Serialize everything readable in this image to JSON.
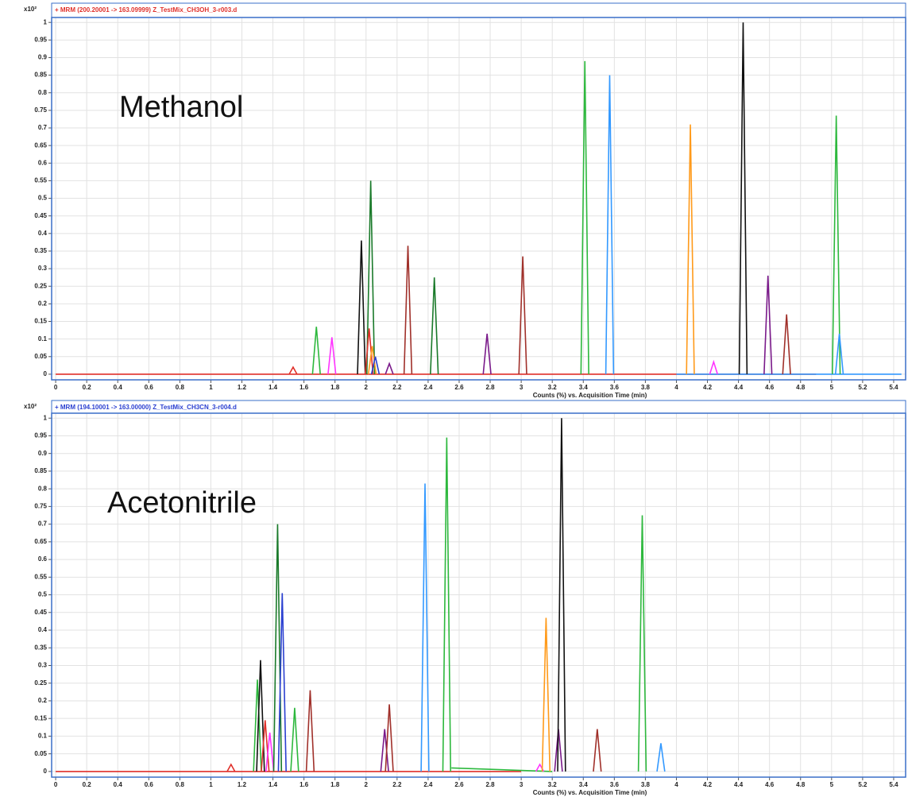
{
  "chart_data": [
    {
      "type": "line",
      "title": "+ MRM (200.20001 -> 163.09999) Z_TestMix_CH3OH_3-r003.d",
      "title_color": "#e0302a",
      "annotation": "Methanol",
      "y_scale_label": "x10²",
      "x_label": "Counts (%) vs. Acquisition Time (min)",
      "grid": true,
      "xlim": [
        -0.026,
        5.477
      ],
      "ylim": [
        -0.016,
        1.014
      ],
      "xticks": [
        0,
        0.2,
        0.4,
        0.6,
        0.8,
        1,
        1.2,
        1.4,
        1.6,
        1.8,
        2,
        2.2,
        2.4,
        2.6,
        2.8,
        3,
        3.2,
        3.4,
        3.6,
        3.8,
        4,
        4.2,
        4.4,
        4.6,
        4.8,
        5,
        5.2,
        5.4
      ],
      "yticks": [
        0,
        0.05,
        0.1,
        0.15,
        0.2,
        0.25,
        0.3,
        0.35,
        0.4,
        0.45,
        0.5,
        0.55,
        0.6,
        0.65,
        0.7,
        0.75,
        0.8,
        0.85,
        0.9,
        0.95,
        1
      ],
      "series": [
        {
          "color": "#e0302a",
          "x": [
            0,
            4.9
          ],
          "values": [
            0,
            0
          ]
        },
        {
          "color": "#3399ff",
          "x": [
            4.0,
            5.45
          ],
          "values": [
            0,
            0
          ]
        },
        {
          "color": "#e0302a",
          "x": [
            1.505,
            1.53,
            1.555
          ],
          "values": [
            0,
            0.02,
            0
          ]
        },
        {
          "color": "#2db83d",
          "x": [
            1.655,
            1.68,
            1.705
          ],
          "values": [
            0,
            0.135,
            0
          ]
        },
        {
          "color": "#ff33ff",
          "x": [
            1.755,
            1.78,
            1.805
          ],
          "values": [
            0,
            0.105,
            0
          ]
        },
        {
          "color": "#111111",
          "x": [
            1.945,
            1.97,
            1.995
          ],
          "values": [
            0,
            0.38,
            0
          ]
        },
        {
          "color": "#1a7a2a",
          "x": [
            2.005,
            2.03,
            2.055
          ],
          "values": [
            0,
            0.55,
            0
          ]
        },
        {
          "color": "#e0302a",
          "x": [
            1.995,
            2.02,
            2.045
          ],
          "values": [
            0,
            0.13,
            0
          ]
        },
        {
          "color": "#ff9a1a",
          "x": [
            2.015,
            2.04,
            2.065
          ],
          "values": [
            0,
            0.08,
            0
          ]
        },
        {
          "color": "#2a3fd0",
          "x": [
            2.035,
            2.06,
            2.085
          ],
          "values": [
            0,
            0.05,
            0
          ]
        },
        {
          "color": "#7a1a8a",
          "x": [
            2.125,
            2.15,
            2.175
          ],
          "values": [
            0,
            0.03,
            0
          ]
        },
        {
          "color": "#a0302a",
          "x": [
            2.245,
            2.27,
            2.295
          ],
          "values": [
            0,
            0.365,
            0
          ]
        },
        {
          "color": "#1a7a2a",
          "x": [
            2.415,
            2.44,
            2.465
          ],
          "values": [
            0,
            0.275,
            0
          ]
        },
        {
          "color": "#7a1a8a",
          "x": [
            2.755,
            2.78,
            2.805
          ],
          "values": [
            0,
            0.115,
            0
          ]
        },
        {
          "color": "#a0302a",
          "x": [
            2.985,
            3.01,
            3.035
          ],
          "values": [
            0,
            0.335,
            0
          ]
        },
        {
          "color": "#2db83d",
          "x": [
            3.385,
            3.41,
            3.435
          ],
          "values": [
            0,
            0.89,
            0
          ]
        },
        {
          "color": "#3399ff",
          "x": [
            3.545,
            3.57,
            3.595
          ],
          "values": [
            0,
            0.85,
            0
          ]
        },
        {
          "color": "#ff9a1a",
          "x": [
            4.065,
            4.09,
            4.115
          ],
          "values": [
            0,
            0.71,
            0
          ]
        },
        {
          "color": "#ff33ff",
          "x": [
            4.215,
            4.24,
            4.265
          ],
          "values": [
            0,
            0.035,
            0
          ]
        },
        {
          "color": "#111111",
          "x": [
            4.405,
            4.43,
            4.455
          ],
          "values": [
            0,
            1.0,
            0
          ]
        },
        {
          "color": "#7a1a8a",
          "x": [
            4.565,
            4.59,
            4.615
          ],
          "values": [
            0,
            0.28,
            0
          ]
        },
        {
          "color": "#a0302a",
          "x": [
            4.685,
            4.71,
            4.735
          ],
          "values": [
            0,
            0.17,
            0
          ]
        },
        {
          "color": "#2db83d",
          "x": [
            5.005,
            5.03,
            5.055
          ],
          "values": [
            0,
            0.735,
            0
          ]
        },
        {
          "color": "#3399ff",
          "x": [
            5.025,
            5.05,
            5.075
          ],
          "values": [
            0,
            0.115,
            0
          ]
        }
      ]
    },
    {
      "type": "line",
      "title": "+ MRM (194.10001 -> 163.00000) Z_TestMix_CH3CN_3-r004.d",
      "title_color": "#2a3fd0",
      "annotation": "Acetonitrile",
      "y_scale_label": "x10²",
      "x_label": "Counts (%) vs. Acquisition Time (min)",
      "grid": true,
      "xlim": [
        -0.026,
        5.477
      ],
      "ylim": [
        -0.016,
        1.014
      ],
      "xticks": [
        0,
        0.2,
        0.4,
        0.6,
        0.8,
        1,
        1.2,
        1.4,
        1.6,
        1.8,
        2,
        2.2,
        2.4,
        2.6,
        2.8,
        3,
        3.2,
        3.4,
        3.6,
        3.8,
        4,
        4.2,
        4.4,
        4.6,
        4.8,
        5,
        5.2,
        5.4
      ],
      "yticks": [
        0,
        0.05,
        0.1,
        0.15,
        0.2,
        0.25,
        0.3,
        0.35,
        0.4,
        0.45,
        0.5,
        0.55,
        0.6,
        0.65,
        0.7,
        0.75,
        0.8,
        0.85,
        0.9,
        0.95,
        1
      ],
      "series": [
        {
          "color": "#e0302a",
          "x": [
            0,
            3.0
          ],
          "values": [
            0,
            0
          ]
        },
        {
          "color": "#2db83d",
          "x": [
            2.55,
            3.2
          ],
          "values": [
            0.01,
            0
          ]
        },
        {
          "color": "#e0302a",
          "x": [
            1.105,
            1.13,
            1.155
          ],
          "values": [
            0,
            0.02,
            0
          ]
        },
        {
          "color": "#2db83d",
          "x": [
            1.275,
            1.3,
            1.325
          ],
          "values": [
            0,
            0.26,
            0
          ]
        },
        {
          "color": "#111111",
          "x": [
            1.295,
            1.32,
            1.345
          ],
          "values": [
            0,
            0.315,
            0
          ]
        },
        {
          "color": "#e0302a",
          "x": [
            1.325,
            1.35,
            1.375
          ],
          "values": [
            0,
            0.145,
            0
          ]
        },
        {
          "color": "#ff33ff",
          "x": [
            1.355,
            1.38,
            1.405
          ],
          "values": [
            0,
            0.11,
            0
          ]
        },
        {
          "color": "#1a7a2a",
          "x": [
            1.405,
            1.43,
            1.455
          ],
          "values": [
            0,
            0.7,
            0
          ]
        },
        {
          "color": "#2a3fd0",
          "x": [
            1.435,
            1.46,
            1.485
          ],
          "values": [
            0,
            0.505,
            0
          ]
        },
        {
          "color": "#2db83d",
          "x": [
            1.515,
            1.54,
            1.565
          ],
          "values": [
            0,
            0.18,
            0
          ]
        },
        {
          "color": "#a0302a",
          "x": [
            1.615,
            1.64,
            1.665
          ],
          "values": [
            0,
            0.23,
            0
          ]
        },
        {
          "color": "#7a1a8a",
          "x": [
            2.095,
            2.12,
            2.145
          ],
          "values": [
            0,
            0.12,
            0
          ]
        },
        {
          "color": "#a0302a",
          "x": [
            2.125,
            2.15,
            2.175
          ],
          "values": [
            0,
            0.19,
            0
          ]
        },
        {
          "color": "#3399ff",
          "x": [
            2.355,
            2.38,
            2.405
          ],
          "values": [
            0,
            0.815,
            0
          ]
        },
        {
          "color": "#2db83d",
          "x": [
            2.495,
            2.52,
            2.545
          ],
          "values": [
            0,
            0.945,
            0
          ]
        },
        {
          "color": "#ff33ff",
          "x": [
            3.095,
            3.12,
            3.145
          ],
          "values": [
            0,
            0.02,
            0
          ]
        },
        {
          "color": "#ff9a1a",
          "x": [
            3.135,
            3.16,
            3.185
          ],
          "values": [
            0,
            0.435,
            0
          ]
        },
        {
          "color": "#7a1a8a",
          "x": [
            3.215,
            3.24,
            3.265
          ],
          "values": [
            0,
            0.12,
            0
          ]
        },
        {
          "color": "#111111",
          "x": [
            3.235,
            3.26,
            3.285
          ],
          "values": [
            0,
            1.0,
            0
          ]
        },
        {
          "color": "#a0302a",
          "x": [
            3.465,
            3.49,
            3.515
          ],
          "values": [
            0,
            0.12,
            0
          ]
        },
        {
          "color": "#2db83d",
          "x": [
            3.755,
            3.78,
            3.805
          ],
          "values": [
            0,
            0.725,
            0
          ]
        },
        {
          "color": "#3399ff",
          "x": [
            3.875,
            3.9,
            3.925
          ],
          "values": [
            0,
            0.08,
            0
          ]
        }
      ]
    }
  ]
}
